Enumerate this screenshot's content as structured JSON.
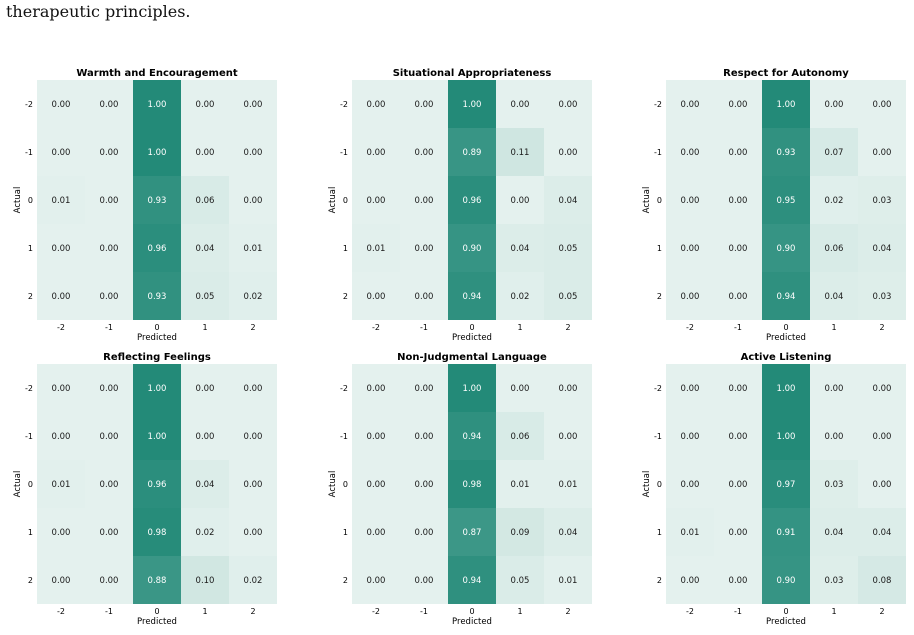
{
  "caption": "therapeutic principles.",
  "colors": {
    "low": "#e4f1ee",
    "high": "#238a78",
    "text_dark": "#1a1a1a",
    "text_light": "#ffffff"
  },
  "chart_data": [
    {
      "type": "heatmap",
      "title": "Warmth and Encouragement",
      "xlabel": "Predicted",
      "ylabel": "Actual",
      "x_categories": [
        "-2",
        "-1",
        "0",
        "1",
        "2"
      ],
      "y_categories": [
        "-2",
        "-1",
        "0",
        "1",
        "2"
      ],
      "values": [
        [
          "0.00",
          "0.00",
          "1.00",
          "0.00",
          "0.00"
        ],
        [
          "0.00",
          "0.00",
          "1.00",
          "0.00",
          "0.00"
        ],
        [
          "0.01",
          "0.00",
          "0.93",
          "0.06",
          "0.00"
        ],
        [
          "0.00",
          "0.00",
          "0.96",
          "0.04",
          "0.01"
        ],
        [
          "0.00",
          "0.00",
          "0.93",
          "0.05",
          "0.02"
        ]
      ]
    },
    {
      "type": "heatmap",
      "title": "Situational Appropriateness",
      "xlabel": "Predicted",
      "ylabel": "Actual",
      "x_categories": [
        "-2",
        "-1",
        "0",
        "1",
        "2"
      ],
      "y_categories": [
        "-2",
        "-1",
        "0",
        "1",
        "2"
      ],
      "values": [
        [
          "0.00",
          "0.00",
          "1.00",
          "0.00",
          "0.00"
        ],
        [
          "0.00",
          "0.00",
          "0.89",
          "0.11",
          "0.00"
        ],
        [
          "0.00",
          "0.00",
          "0.96",
          "0.00",
          "0.04"
        ],
        [
          "0.01",
          "0.00",
          "0.90",
          "0.04",
          "0.05"
        ],
        [
          "0.00",
          "0.00",
          "0.94",
          "0.02",
          "0.05"
        ]
      ]
    },
    {
      "type": "heatmap",
      "title": "Respect for Autonomy",
      "xlabel": "Predicted",
      "ylabel": "Actual",
      "x_categories": [
        "-2",
        "-1",
        "0",
        "1",
        "2"
      ],
      "y_categories": [
        "-2",
        "-1",
        "0",
        "1",
        "2"
      ],
      "values": [
        [
          "0.00",
          "0.00",
          "1.00",
          "0.00",
          "0.00"
        ],
        [
          "0.00",
          "0.00",
          "0.93",
          "0.07",
          "0.00"
        ],
        [
          "0.00",
          "0.00",
          "0.95",
          "0.02",
          "0.03"
        ],
        [
          "0.00",
          "0.00",
          "0.90",
          "0.06",
          "0.04"
        ],
        [
          "0.00",
          "0.00",
          "0.94",
          "0.04",
          "0.03"
        ]
      ]
    },
    {
      "type": "heatmap",
      "title": "Reflecting Feelings",
      "xlabel": "Predicted",
      "ylabel": "Actual",
      "x_categories": [
        "-2",
        "-1",
        "0",
        "1",
        "2"
      ],
      "y_categories": [
        "-2",
        "-1",
        "0",
        "1",
        "2"
      ],
      "values": [
        [
          "0.00",
          "0.00",
          "1.00",
          "0.00",
          "0.00"
        ],
        [
          "0.00",
          "0.00",
          "1.00",
          "0.00",
          "0.00"
        ],
        [
          "0.01",
          "0.00",
          "0.96",
          "0.04",
          "0.00"
        ],
        [
          "0.00",
          "0.00",
          "0.98",
          "0.02",
          "0.00"
        ],
        [
          "0.00",
          "0.00",
          "0.88",
          "0.10",
          "0.02"
        ]
      ]
    },
    {
      "type": "heatmap",
      "title": "Non-Judgmental Language",
      "xlabel": "Predicted",
      "ylabel": "Actual",
      "x_categories": [
        "-2",
        "-1",
        "0",
        "1",
        "2"
      ],
      "y_categories": [
        "-2",
        "-1",
        "0",
        "1",
        "2"
      ],
      "values": [
        [
          "0.00",
          "0.00",
          "1.00",
          "0.00",
          "0.00"
        ],
        [
          "0.00",
          "0.00",
          "0.94",
          "0.06",
          "0.00"
        ],
        [
          "0.00",
          "0.00",
          "0.98",
          "0.01",
          "0.01"
        ],
        [
          "0.00",
          "0.00",
          "0.87",
          "0.09",
          "0.04"
        ],
        [
          "0.00",
          "0.00",
          "0.94",
          "0.05",
          "0.01"
        ]
      ]
    },
    {
      "type": "heatmap",
      "title": "Active Listening",
      "xlabel": "Predicted",
      "ylabel": "Actual",
      "x_categories": [
        "-2",
        "-1",
        "0",
        "1",
        "2"
      ],
      "y_categories": [
        "-2",
        "-1",
        "0",
        "1",
        "2"
      ],
      "values": [
        [
          "0.00",
          "0.00",
          "1.00",
          "0.00",
          "0.00"
        ],
        [
          "0.00",
          "0.00",
          "1.00",
          "0.00",
          "0.00"
        ],
        [
          "0.00",
          "0.00",
          "0.97",
          "0.03",
          "0.00"
        ],
        [
          "0.01",
          "0.00",
          "0.91",
          "0.04",
          "0.04"
        ],
        [
          "0.00",
          "0.00",
          "0.90",
          "0.03",
          "0.08"
        ]
      ]
    }
  ]
}
